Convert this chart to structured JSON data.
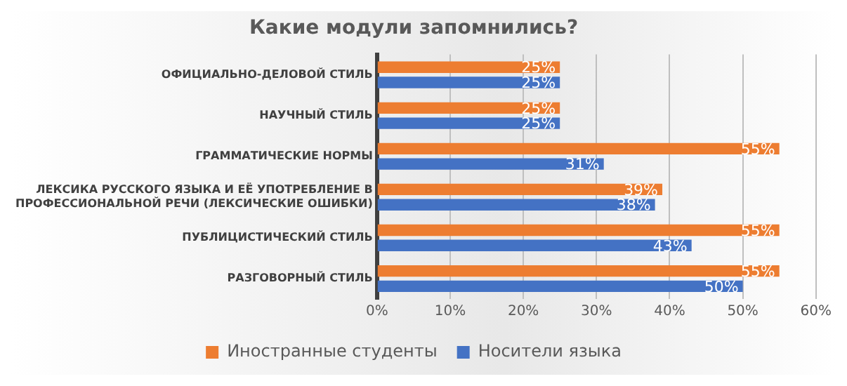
{
  "chart_data": {
    "type": "bar",
    "orientation": "horizontal",
    "title": "Какие модули запомнились?",
    "categories": [
      "ОФИЦИАЛЬНО-ДЕЛОВОЙ СТИЛЬ",
      "НАУЧНЫЙ СТИЛЬ",
      "ГРАММАТИЧЕСКИЕ НОРМЫ",
      "ЛЕКСИКА РУССКОГО ЯЗЫКА И ЕЁ УПОТРЕБЛЕНИЕ В ПРОФЕССИОНАЛЬНОЙ РЕЧИ (ЛЕКСИЧЕСКИЕ ОШИБКИ)",
      "ПУБЛИЦИСТИЧЕСКИЙ СТИЛЬ",
      "РАЗГОВОРНЫЙ СТИЛЬ"
    ],
    "series": [
      {
        "name": "Иностранные студенты",
        "color": "#ed7d31",
        "values": [
          25,
          25,
          55,
          39,
          55,
          55
        ],
        "value_labels": [
          "25%",
          "25%",
          "55%",
          "39%",
          "55%",
          "55%"
        ]
      },
      {
        "name": "Носители языка",
        "color": "#4472c4",
        "values": [
          25,
          25,
          31,
          38,
          43,
          50
        ],
        "value_labels": [
          "25%",
          "25%",
          "31%",
          "38%",
          "43%",
          "50%"
        ]
      }
    ],
    "xlim": [
      0,
      60
    ],
    "xticks": [
      {
        "value": 0,
        "label": "0%"
      },
      {
        "value": 10,
        "label": "10%"
      },
      {
        "value": 20,
        "label": "20%"
      },
      {
        "value": 30,
        "label": "30%"
      },
      {
        "value": 40,
        "label": "40%"
      },
      {
        "value": 50,
        "label": "50%"
      },
      {
        "value": 60,
        "label": "60%"
      }
    ],
    "grid": "x",
    "legend": "bottom"
  }
}
